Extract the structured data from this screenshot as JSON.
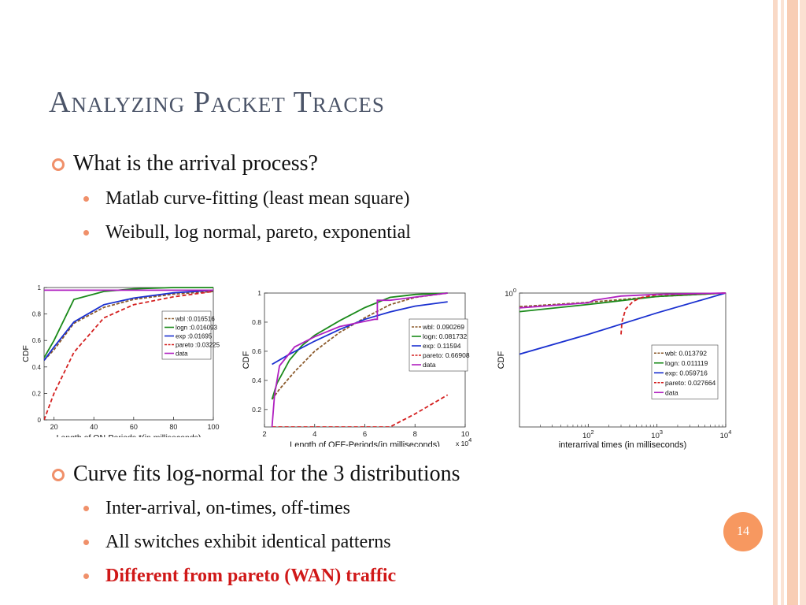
{
  "slide": {
    "title": "Analyzing Packet Traces",
    "page_number": "14",
    "bullets": [
      {
        "text": "What is the arrival process?",
        "sub": [
          "Matlab curve-fitting (least mean square)",
          "Weibull, log normal, pareto, exponential"
        ]
      },
      {
        "text": "Curve fits log-normal for the 3 distributions",
        "sub": [
          "Inter-arrival, on-times, off-times",
          "All switches exhibit identical patterns",
          "Different from pareto (WAN) traffic"
        ]
      }
    ],
    "colors": {
      "title": "#4b5468",
      "accent": "#f0906a",
      "highlight": "#d01818",
      "badge": "#f79860"
    }
  },
  "chart_data": [
    {
      "type": "line",
      "xlabel": "Length of ON-Periods *(in milliseconds)",
      "ylabel": "CDF",
      "xlim": [
        15,
        100
      ],
      "ylim": [
        0,
        1
      ],
      "xticks": [
        20,
        40,
        60,
        80,
        100
      ],
      "yticks": [
        0,
        0.2,
        0.4,
        0.6,
        0.8,
        1
      ],
      "xtick_labels": [
        "20",
        "40",
        "60",
        "80",
        "100"
      ],
      "ytick_labels": [
        "0",
        "0.2",
        "0.4",
        "0.6",
        "0.8",
        "1"
      ],
      "legend": "bottom-right",
      "series": [
        {
          "name": "wbl :0.016516",
          "color": "#8b5a2b",
          "dash": "4,2",
          "x": [
            15,
            20,
            30,
            45,
            60,
            80,
            100
          ],
          "y": [
            0.45,
            0.53,
            0.73,
            0.85,
            0.91,
            0.95,
            0.97
          ]
        },
        {
          "name": "logn :0.016093",
          "color": "#1a8a1a",
          "dash": "",
          "x": [
            15,
            20,
            30,
            45,
            60,
            80,
            100
          ],
          "y": [
            0.47,
            0.6,
            0.91,
            0.97,
            0.99,
            1.0,
            1.0
          ]
        },
        {
          "name": "exp :0.01695",
          "color": "#1a30d0",
          "dash": "",
          "x": [
            15,
            20,
            30,
            45,
            60,
            80,
            100
          ],
          "y": [
            0.45,
            0.55,
            0.74,
            0.87,
            0.92,
            0.96,
            0.98
          ]
        },
        {
          "name": "pareto :0.03225",
          "color": "#d42020",
          "dash": "5,3",
          "x": [
            15,
            20,
            30,
            45,
            60,
            80,
            100
          ],
          "y": [
            0.0,
            0.2,
            0.51,
            0.77,
            0.87,
            0.93,
            0.97
          ]
        },
        {
          "name": "data",
          "color": "#b020c0",
          "dash": "",
          "x": [
            15,
            100
          ],
          "y": [
            0.98,
            0.98
          ]
        }
      ]
    },
    {
      "type": "line",
      "xlabel": "Length of OFF-Periods(in milliseconds)",
      "x_multiplier": "x 10",
      "x_multiplier_exp": "4",
      "ylabel": "CDF",
      "xlim": [
        2,
        10
      ],
      "ylim": [
        0.08,
        1
      ],
      "xticks": [
        2,
        4,
        6,
        8,
        10
      ],
      "yticks": [
        0.2,
        0.4,
        0.6,
        0.8,
        1
      ],
      "xtick_labels": [
        "2",
        "4",
        "6",
        "8",
        "10"
      ],
      "ytick_labels": [
        "0.2",
        "0.4",
        "0.6",
        "0.8",
        "1"
      ],
      "legend": "bottom-right",
      "series": [
        {
          "name": "wbl: 0.090269",
          "color": "#8b5a2b",
          "dash": "4,2",
          "x": [
            2.3,
            2.6,
            3.2,
            4,
            5,
            6,
            7,
            8,
            9.3
          ],
          "y": [
            0.27,
            0.34,
            0.46,
            0.6,
            0.73,
            0.83,
            0.92,
            0.97,
            1.0
          ]
        },
        {
          "name": "logn: 0.081732",
          "color": "#1a8a1a",
          "dash": "",
          "x": [
            2.3,
            2.5,
            3,
            3.5,
            4,
            5,
            6,
            7,
            8,
            9.3
          ],
          "y": [
            0.27,
            0.38,
            0.54,
            0.64,
            0.71,
            0.81,
            0.9,
            0.97,
            0.99,
            1.0
          ]
        },
        {
          "name": "exp: 0.11594",
          "color": "#1a30d0",
          "dash": "",
          "x": [
            2.3,
            3,
            4,
            5,
            6,
            7,
            8,
            9.3
          ],
          "y": [
            0.51,
            0.58,
            0.67,
            0.75,
            0.82,
            0.87,
            0.91,
            0.94
          ]
        },
        {
          "name": "pareto: 0.66908",
          "color": "#d42020",
          "dash": "5,3",
          "x": [
            2.3,
            4,
            6,
            7,
            8,
            9.3
          ],
          "y": [
            0.08,
            0.08,
            0.08,
            0.08,
            0.17,
            0.3
          ]
        },
        {
          "name": "data",
          "color": "#b020c0",
          "dash": "",
          "x": [
            2.3,
            2.4,
            2.6,
            3.2,
            4,
            5,
            6.4,
            6.5,
            6.5,
            7,
            9.3
          ],
          "y": [
            0.08,
            0.3,
            0.5,
            0.63,
            0.7,
            0.77,
            0.82,
            0.82,
            0.95,
            0.95,
            1.0
          ]
        }
      ]
    },
    {
      "type": "line",
      "xlabel": "interarrival times (in milliseconds)",
      "ylabel": "CDF",
      "x_scale": "log",
      "y_scale": "log",
      "xlim": [
        10,
        10000
      ],
      "ylim": [
        0.04,
        1
      ],
      "xticks": [
        100,
        1000,
        10000
      ],
      "xtick_labels": [
        [
          "10",
          "2"
        ],
        [
          "10",
          "3"
        ],
        [
          "10",
          "4"
        ]
      ],
      "yticks": [
        1
      ],
      "ytick_labels": [
        [
          "10",
          "0"
        ]
      ],
      "legend": "bottom-right",
      "series": [
        {
          "name": "wbl: 0.013792",
          "color": "#8b5a2b",
          "dash": "4,2",
          "x": [
            10,
            100,
            1000,
            10000
          ],
          "y": [
            0.72,
            0.8,
            0.92,
            1.0
          ]
        },
        {
          "name": "logn: 0.011119",
          "color": "#1a8a1a",
          "dash": "",
          "x": [
            10,
            100,
            1000,
            10000
          ],
          "y": [
            0.64,
            0.76,
            0.92,
            1.0
          ]
        },
        {
          "name": "exp: 0.059716",
          "color": "#1a30d0",
          "dash": "",
          "x": [
            10,
            100,
            1000,
            10000
          ],
          "y": [
            0.23,
            0.37,
            0.62,
            1.0
          ]
        },
        {
          "name": "pareto: 0.027664",
          "color": "#d42020",
          "dash": "5,3",
          "x": [
            300,
            310,
            350,
            450,
            600,
            1000,
            10000
          ],
          "y": [
            0.37,
            0.5,
            0.68,
            0.82,
            0.9,
            0.96,
            1.0
          ]
        },
        {
          "name": "data",
          "color": "#b020c0",
          "dash": "",
          "x": [
            10,
            100,
            120,
            300,
            1000,
            10000
          ],
          "y": [
            0.7,
            0.79,
            0.84,
            0.93,
            0.97,
            1.0
          ]
        }
      ]
    }
  ]
}
